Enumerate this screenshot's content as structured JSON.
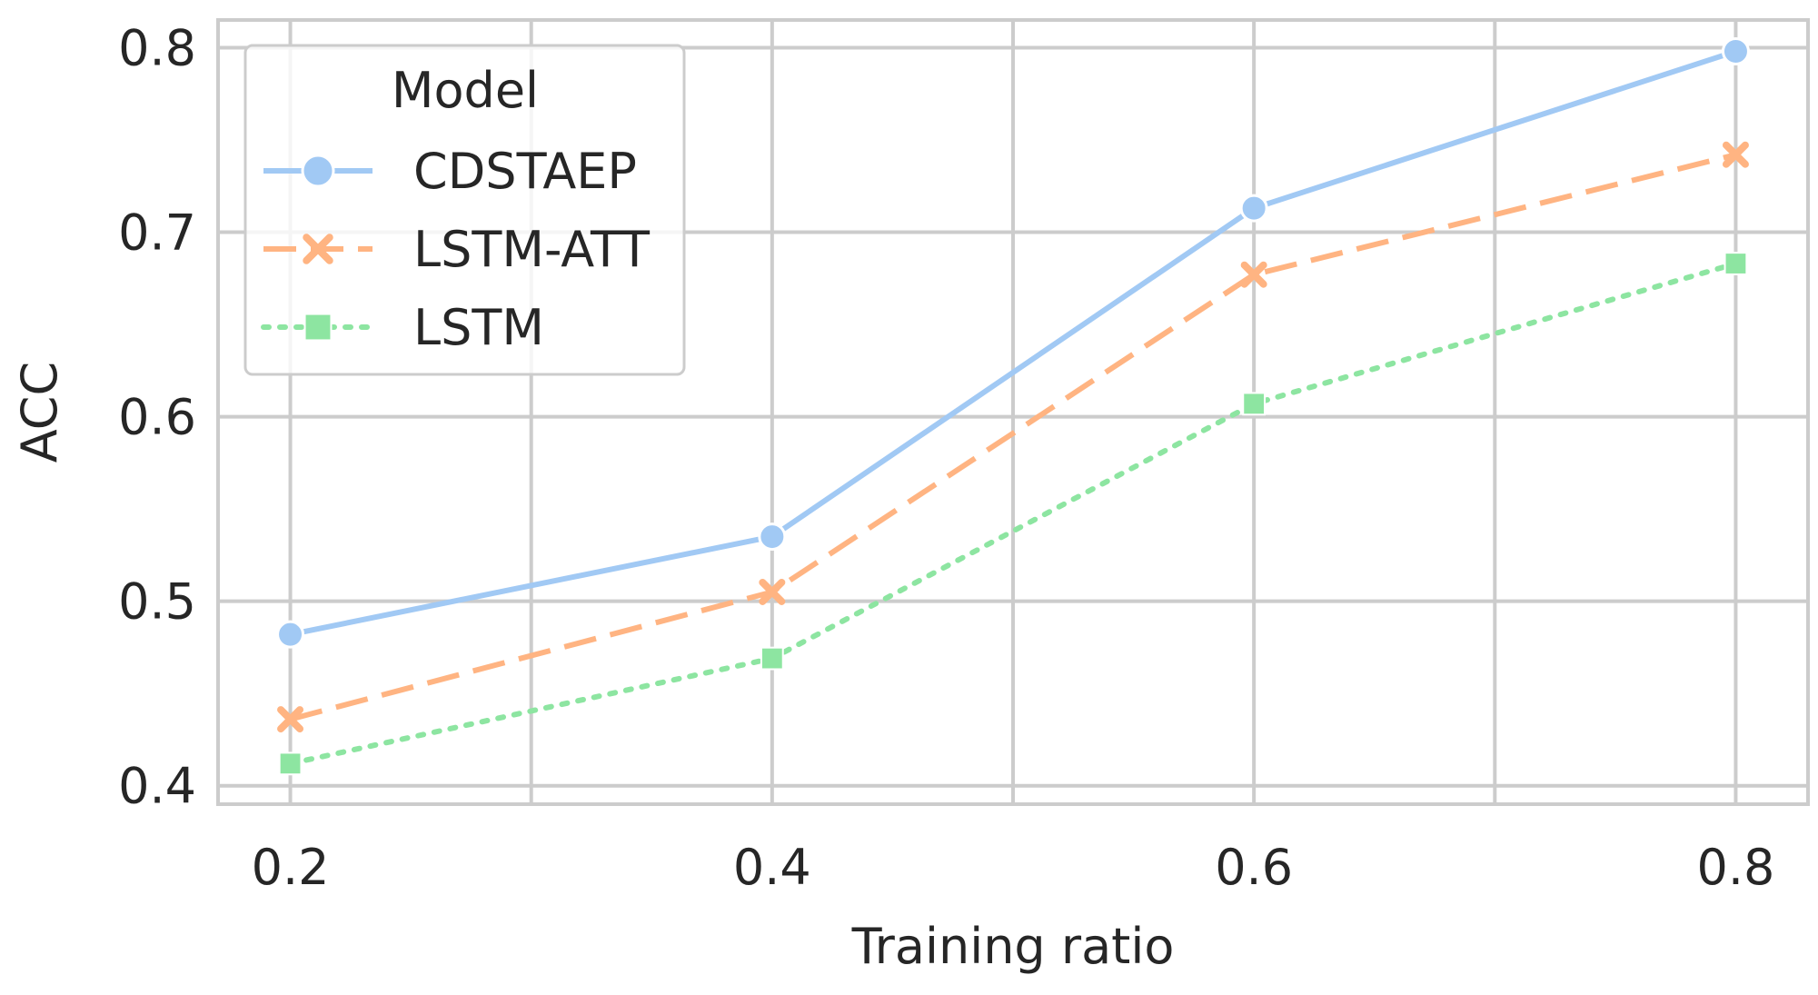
{
  "chart_data": {
    "type": "line",
    "xlabel": "Training ratio",
    "ylabel": "ACC",
    "x": [
      0.2,
      0.4,
      0.6,
      0.8
    ],
    "x_tick_labels": [
      "0.2",
      "0.4",
      "0.6",
      "0.8"
    ],
    "xlim": [
      0.17,
      0.83
    ],
    "y_ticks": [
      0.4,
      0.5,
      0.6,
      0.7,
      0.8
    ],
    "y_tick_labels": [
      "0.4",
      "0.5",
      "0.6",
      "0.7",
      "0.8"
    ],
    "ylim": [
      0.39,
      0.815
    ],
    "x_gridlines": [
      0.2,
      0.3,
      0.4,
      0.5,
      0.6,
      0.7,
      0.8
    ],
    "grid": true,
    "legend": {
      "title": "Model",
      "position": "top-left"
    },
    "series": [
      {
        "name": "CDSTAEP",
        "values": [
          0.482,
          0.535,
          0.713,
          0.798
        ],
        "color": "#a1c9f4",
        "dash": "solid",
        "marker": "circle"
      },
      {
        "name": "LSTM-ATT",
        "values": [
          0.436,
          0.505,
          0.677,
          0.742
        ],
        "color": "#ffb482",
        "dash": "dashed",
        "marker": "x"
      },
      {
        "name": "LSTM",
        "values": [
          0.412,
          0.469,
          0.607,
          0.683
        ],
        "color": "#8de5a1",
        "dash": "dotted",
        "marker": "square"
      }
    ]
  }
}
